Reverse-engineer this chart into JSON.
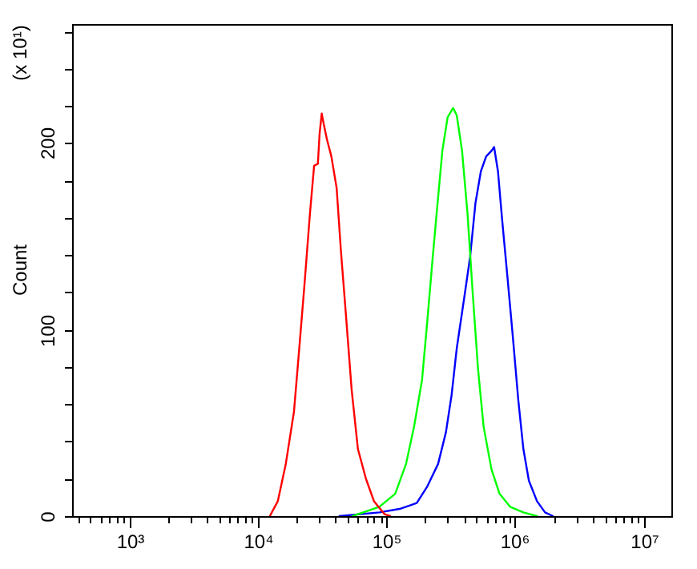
{
  "chart_data": {
    "type": "line",
    "ylabel": "Count",
    "annotations": [
      "(x 10¹)"
    ],
    "log": "x",
    "line_style": "solid",
    "xlim": [
      360,
      16400000
    ],
    "xticks": [
      {
        "value": 400,
        "label": null
      },
      {
        "value": 500,
        "label": null
      },
      {
        "value": 600,
        "label": null
      },
      {
        "value": 700,
        "label": null
      },
      {
        "value": 800,
        "label": null
      },
      {
        "value": 900,
        "label": null
      },
      {
        "value": 1000,
        "label": "10³"
      },
      {
        "value": 2000,
        "label": null
      },
      {
        "value": 3000,
        "label": null
      },
      {
        "value": 4000,
        "label": null
      },
      {
        "value": 5000,
        "label": null
      },
      {
        "value": 6000,
        "label": null
      },
      {
        "value": 7000,
        "label": null
      },
      {
        "value": 8000,
        "label": null
      },
      {
        "value": 9000,
        "label": null
      },
      {
        "value": 10000,
        "label": "10⁴"
      },
      {
        "value": 20000,
        "label": null
      },
      {
        "value": 30000,
        "label": null
      },
      {
        "value": 40000,
        "label": null
      },
      {
        "value": 50000,
        "label": null
      },
      {
        "value": 60000,
        "label": null
      },
      {
        "value": 70000,
        "label": null
      },
      {
        "value": 80000,
        "label": null
      },
      {
        "value": 90000,
        "label": null
      },
      {
        "value": 100000,
        "label": "10⁵"
      },
      {
        "value": 200000,
        "label": null
      },
      {
        "value": 300000,
        "label": null
      },
      {
        "value": 400000,
        "label": null
      },
      {
        "value": 500000,
        "label": null
      },
      {
        "value": 600000,
        "label": null
      },
      {
        "value": 700000,
        "label": null
      },
      {
        "value": 800000,
        "label": null
      },
      {
        "value": 900000,
        "label": null
      },
      {
        "value": 1000000,
        "label": "10⁶"
      },
      {
        "value": 2000000,
        "label": null
      },
      {
        "value": 3000000,
        "label": null
      },
      {
        "value": 4000000,
        "label": null
      },
      {
        "value": 5000000,
        "label": null
      },
      {
        "value": 6000000,
        "label": null
      },
      {
        "value": 7000000,
        "label": null
      },
      {
        "value": 8000000,
        "label": null
      },
      {
        "value": 9000000,
        "label": null
      },
      {
        "value": 10000000,
        "label": "10⁷"
      }
    ],
    "ylim": [
      0,
      264
    ],
    "yticks": [
      0,
      {
        "value": 20,
        "label": null
      },
      {
        "value": 40,
        "label": null
      },
      {
        "value": 60,
        "label": null
      },
      {
        "value": 80,
        "label": null
      },
      100,
      {
        "value": 120,
        "label": null
      },
      {
        "value": 140,
        "label": null
      },
      {
        "value": 160,
        "label": null
      },
      {
        "value": 180,
        "label": null
      },
      200,
      {
        "value": 220,
        "label": null
      },
      {
        "value": 240,
        "label": null
      },
      {
        "value": 260,
        "label": null
      }
    ],
    "series": [
      {
        "color": "#ff0000",
        "x": [
          12400,
          14300,
          16500,
          19100,
          21000,
          23100,
          25400,
          27400,
          29300,
          30200,
          31400,
          32600,
          34500,
          37300,
          41000,
          44300,
          48800,
          53600,
          60000,
          69300,
          80000,
          96800,
          107000
        ],
        "values": [
          0,
          8,
          28,
          56,
          90,
          125,
          162,
          188,
          189,
          205,
          216,
          210,
          202,
          193,
          176,
          142,
          105,
          68,
          36,
          20,
          8,
          1,
          0
        ]
      },
      {
        "color": "#00ff00",
        "x": [
          54600,
          88100,
          117000,
          142000,
          164000,
          189000,
          208000,
          229000,
          252000,
          272000,
          299000,
          330000,
          352000,
          387000,
          427000,
          469000,
          515000,
          569000,
          656000,
          757000,
          914000,
          1160000,
          1480000
        ],
        "values": [
          0,
          5,
          12,
          28,
          48,
          73,
          105,
          139,
          171,
          196,
          214,
          219,
          215,
          196,
          162,
          119,
          79,
          48,
          25,
          12,
          5,
          2,
          0
        ]
      },
      {
        "color": "#0000ff",
        "x": [
          43100,
          88100,
          129000,
          172000,
          208000,
          252000,
          290000,
          321000,
          352000,
          406000,
          447000,
          492000,
          542000,
          596000,
          656000,
          687000,
          736000,
          793000,
          873000,
          961000,
          1060000,
          1160000,
          1280000,
          1480000,
          1710000,
          1970000
        ],
        "values": [
          0,
          2,
          4,
          7,
          16,
          28,
          45,
          65,
          90,
          119,
          139,
          168,
          185,
          193,
          196,
          198,
          185,
          159,
          128,
          96,
          62,
          36,
          19,
          8,
          2,
          0
        ]
      }
    ]
  }
}
